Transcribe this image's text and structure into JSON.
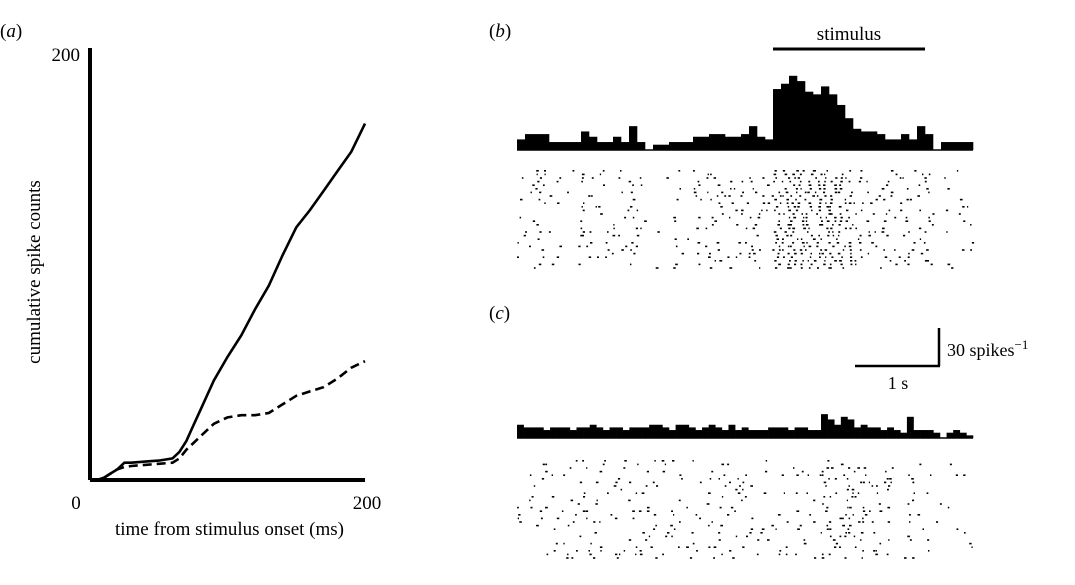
{
  "panels": {
    "a": {
      "open": "(",
      "letter": "a",
      "close": ")"
    },
    "b": {
      "open": "(",
      "letter": "b",
      "close": ")"
    },
    "c": {
      "open": "(",
      "letter": "c",
      "close": ")"
    }
  },
  "chart_data": [
    {
      "panel": "a",
      "type": "line",
      "title": "",
      "xlabel": "time from stimulus onset (ms)",
      "ylabel": "cumulative spike counts",
      "xlim": [
        0,
        200
      ],
      "ylim": [
        0,
        200
      ],
      "x_ticks": [
        "0",
        "200"
      ],
      "y_ticks": [
        "200"
      ],
      "grid": false,
      "series": [
        {
          "style": "solid",
          "x": [
            0,
            5,
            10,
            15,
            20,
            25,
            30,
            40,
            50,
            60,
            65,
            70,
            75,
            80,
            90,
            100,
            110,
            120,
            130,
            140,
            150,
            160,
            170,
            180,
            190,
            200
          ],
          "y": [
            0,
            0,
            1,
            3,
            5,
            8,
            8,
            8.5,
            9,
            10,
            13,
            18,
            25,
            32,
            46,
            57,
            67,
            79,
            90,
            104,
            117,
            125,
            134,
            143,
            152,
            165
          ]
        },
        {
          "style": "dashed",
          "x": [
            0,
            5,
            10,
            15,
            20,
            25,
            30,
            40,
            50,
            60,
            65,
            70,
            80,
            90,
            100,
            110,
            120,
            130,
            140,
            150,
            160,
            170,
            180,
            190,
            200
          ],
          "y": [
            0,
            0,
            1,
            3,
            5,
            6,
            6.5,
            7,
            7.5,
            8,
            10,
            14,
            20,
            26,
            29,
            30,
            30,
            31,
            35,
            39,
            41,
            43,
            47,
            52,
            55
          ]
        }
      ]
    },
    {
      "panel": "b",
      "type": "bar",
      "annotation": "stimulus",
      "stimulus_window_bins": [
        32,
        51
      ],
      "bin_values": [
        4,
        6,
        6,
        6,
        3,
        3,
        3,
        3,
        7,
        5,
        3,
        3,
        5,
        3,
        9,
        3,
        0,
        2,
        2,
        3,
        3,
        3,
        5,
        5,
        6,
        6,
        5,
        5,
        6,
        9,
        5,
        4,
        23,
        25,
        28,
        26,
        22,
        21,
        24,
        21,
        17,
        12,
        8,
        7,
        7,
        6,
        4,
        4,
        6,
        4,
        9,
        6,
        0,
        3,
        3,
        3,
        3
      ]
    },
    {
      "panel": "c",
      "type": "bar",
      "scale_bar": {
        "y_value": "30 spikes",
        "y_sup": "−1",
        "x_value": "1 s"
      },
      "bin_values": [
        5,
        4,
        4,
        4,
        3,
        4,
        4,
        4,
        3,
        4,
        4,
        5,
        4,
        3,
        4,
        4,
        3,
        4,
        4,
        4,
        5,
        5,
        4,
        3,
        5,
        5,
        4,
        3,
        4,
        5,
        4,
        3,
        5,
        3,
        4,
        3,
        3,
        3,
        4,
        4,
        4,
        3,
        4,
        4,
        3,
        3,
        9,
        7,
        5,
        8,
        7,
        4,
        5,
        4,
        4,
        3,
        4,
        3,
        2,
        8,
        3,
        3,
        3,
        2,
        0,
        2,
        3,
        2,
        1
      ]
    }
  ]
}
